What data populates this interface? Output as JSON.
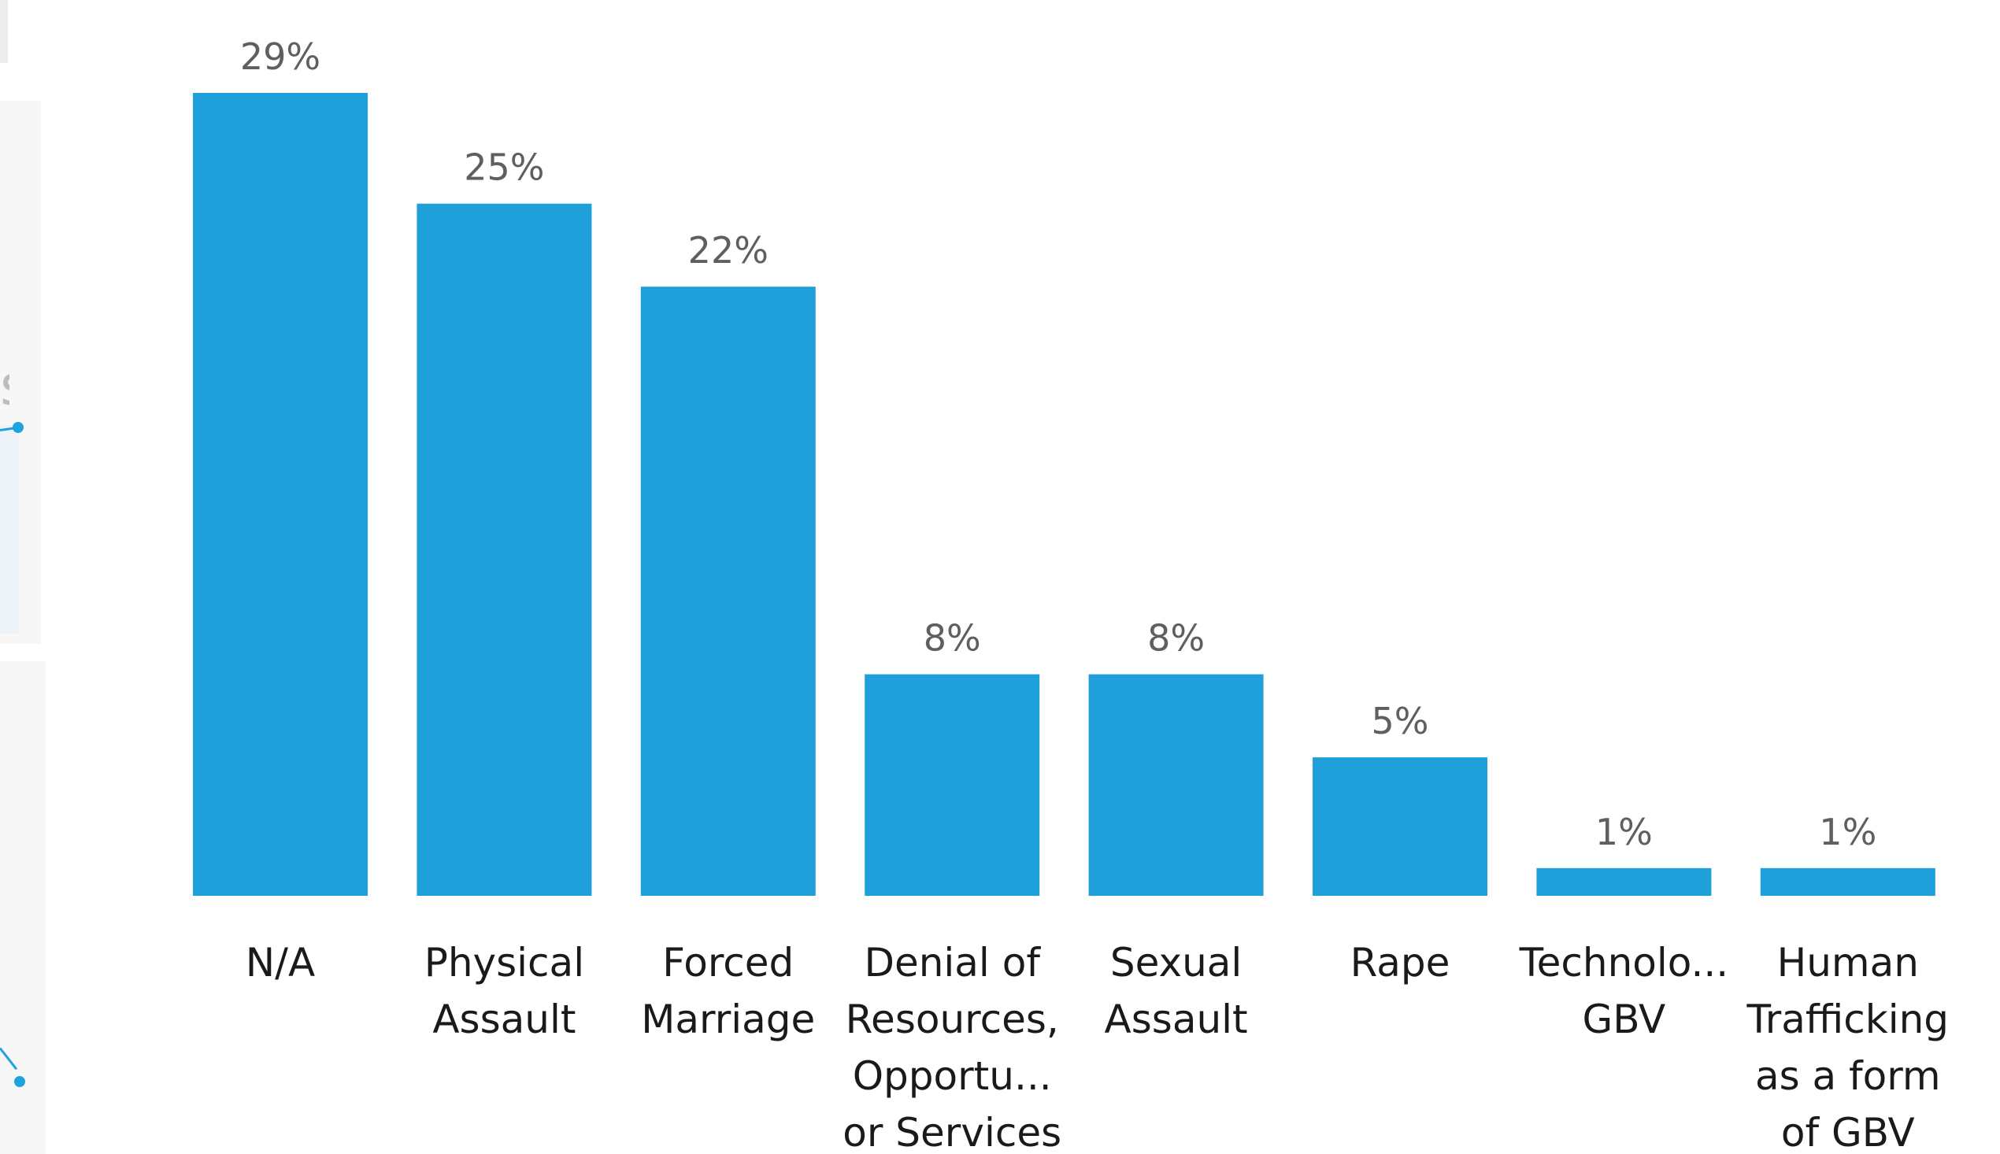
{
  "colors": {
    "bar": "#20a0da",
    "data_label": "#5f5f5f",
    "category_label": "#1a1a1a",
    "background": "#ffffff"
  },
  "left_panel": {
    "glyph": "s"
  },
  "chart_data": {
    "type": "bar",
    "categories": [
      [
        "N/A"
      ],
      [
        "Physical",
        "Assault"
      ],
      [
        "Forced",
        "Marriage"
      ],
      [
        "Denial of",
        "Resources,",
        "Opportu...",
        "or Services"
      ],
      [
        "Sexual",
        "Assault"
      ],
      [
        "Rape"
      ],
      [
        "Technolo...",
        "GBV"
      ],
      [
        "Human",
        "Trafficking",
        "as a form",
        "of GBV"
      ]
    ],
    "values": [
      29,
      25,
      22,
      8,
      8,
      5,
      1,
      1
    ],
    "data_labels": [
      "29%",
      "25%",
      "22%",
      "8%",
      "8%",
      "5%",
      "1%",
      "1%"
    ],
    "ylim": [
      0,
      29
    ],
    "grid": false,
    "legend": "none"
  }
}
